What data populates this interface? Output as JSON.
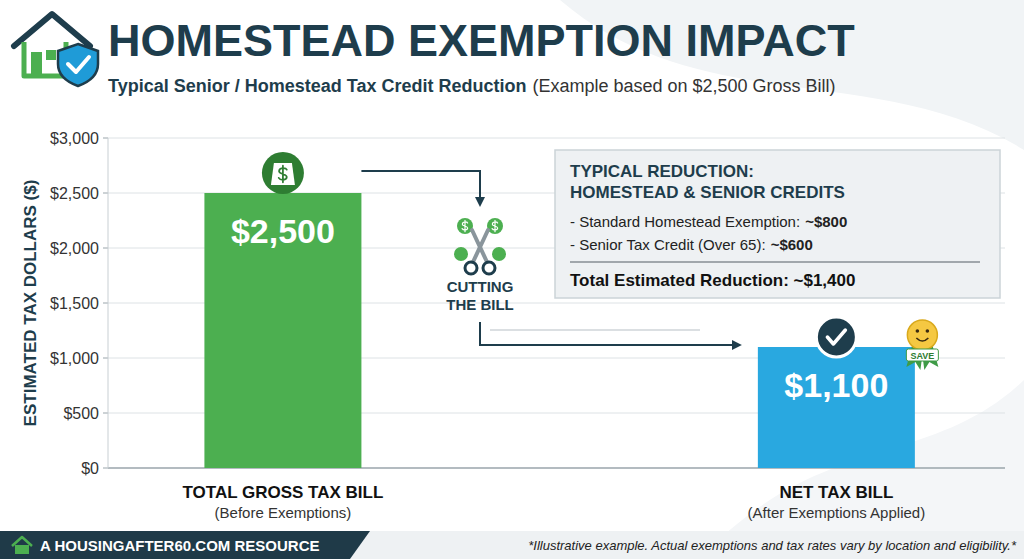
{
  "chart_data": {
    "type": "bar",
    "title": "HOMESTEAD EXEMPTION IMPACT",
    "subtitle": "Typical Senior / Homestead Tax Credit Reduction",
    "subtitle_note": "(Example based on $2,500 Gross Bill)",
    "y_label": "ESTIMATED TAX DOLLARS ($)",
    "categories": [
      "TOTAL GROSS TAX BILL",
      "NET TAX BILL"
    ],
    "category_notes": [
      "(Before Exemptions)",
      "(After Exemptions Applied)"
    ],
    "values": [
      2500,
      1100
    ],
    "value_labels": [
      "$2,500",
      "$1,100"
    ],
    "colors": [
      "#4caf50",
      "#29a8e0"
    ],
    "data_labels": true,
    "ylim": [
      0,
      3000
    ],
    "yticks": [
      {
        "value": 0,
        "label": "$0"
      },
      {
        "value": 500,
        "label": "$500"
      },
      {
        "value": 1000,
        "label": "$1,000"
      },
      {
        "value": 1500,
        "label": "$1,500"
      },
      {
        "value": 2000,
        "label": "$2,000"
      },
      {
        "value": 2500,
        "label": "$2,500"
      },
      {
        "value": 3000,
        "label": "$3,000"
      }
    ],
    "grid": true,
    "annotations": {
      "heading": [
        "TYPICAL REDUCTION:",
        "HOMESTEAD & SENIOR CREDITS"
      ],
      "items": [
        {
          "label": "- Standard Homestead Exemption:",
          "amount": "~$800"
        },
        {
          "label": "- Senior Tax Credit (Over 65):",
          "amount": "~$600"
        }
      ],
      "total": "Total Estimated Reduction: ~$1,400",
      "cut_label": "CUTTING THE BILL",
      "badge": "SAVE"
    },
    "source": "A HOUSINGAFTER60.COM RESOURCE",
    "footnote": "*Illustrative example. Actual exemptions and tax rates vary by location and eligibility.*"
  }
}
